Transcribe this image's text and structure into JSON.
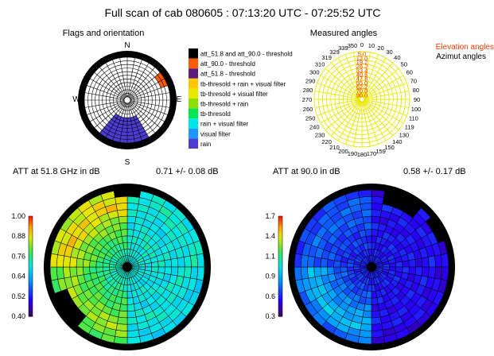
{
  "title": "Full scan of cab 080605 : 07:13:20 UTC - 07:25:52 UTC",
  "flags_panel": {
    "title": "Flags and orientation",
    "compass": {
      "north": "N",
      "east": "E",
      "south": "S",
      "west": "W"
    },
    "legend": [
      {
        "label": "att_51.8 and att_90.0 - threshold",
        "color": "#000000"
      },
      {
        "label": "att_90.0 - threshold",
        "color": "#ff5a00"
      },
      {
        "label": "att_51.8 - threshold",
        "color": "#5a1e78"
      },
      {
        "label": "tb-thresold + rain + visual filter",
        "color": "#ffc800"
      },
      {
        "label": "tb-thresold + visual filter",
        "color": "#e8e800"
      },
      {
        "label": "tb-thresold + rain",
        "color": "#8ce000"
      },
      {
        "label": "tb-thresold",
        "color": "#00e650"
      },
      {
        "label": "rain + visual filter",
        "color": "#00e6e6"
      },
      {
        "label": "visual filter",
        "color": "#1e96ff"
      },
      {
        "label": "rain",
        "color": "#4b3cd2"
      }
    ],
    "colors": {
      "rain": "#4b3cd2",
      "att90_threshold": "#ff5a00",
      "ring": "#000000"
    }
  },
  "angles_panel": {
    "title": "Measured angles",
    "legend_elevation": "Elevation angles",
    "legend_azimuth": "Azimut angles",
    "elevation_labels": [
      "5.0",
      "12.0",
      "19.2",
      "26.2",
      "33.4",
      "40.6",
      "47.8",
      "55.0",
      "62.2",
      "70.0",
      "90.0"
    ],
    "azimuth_labels": [
      "0",
      "10",
      "20",
      "30",
      "40",
      "50",
      "60",
      "70",
      "80",
      "90",
      "100",
      "110",
      "119",
      "130",
      "140",
      "150",
      "159",
      "170",
      "180",
      "190",
      "200",
      "210",
      "220",
      "230",
      "240",
      "250",
      "260",
      "270",
      "280",
      "290",
      "300",
      "310",
      "319",
      "329",
      "339",
      "350"
    ],
    "colors": {
      "grid": "#e8e800",
      "elevation": "#ff3c00",
      "azimuth": "#000000"
    }
  },
  "chart_data": [
    {
      "type": "heatmap",
      "title": "ATT at 51.8 GHz in dB",
      "annotation": "0.71 +/- 0.08 dB",
      "colorbar_ticks": [
        "1.00",
        "0.88",
        "0.76",
        "0.64",
        "0.52",
        "0.40"
      ],
      "vmin": 0.4,
      "vmax": 1.0,
      "projection": "polar",
      "rings": 11,
      "sectors": 36,
      "description_of_values": "azimuth sectors x elevation rings",
      "values_by_sector_group": [
        {
          "azimuth_range": "0-90",
          "values": [
            0.7,
            0.72,
            0.71,
            0.7,
            0.69,
            0.7,
            0.71,
            0.72,
            0.7,
            0.71,
            0.7
          ]
        },
        {
          "azimuth_range": "90-180",
          "values": [
            0.68,
            0.69,
            0.7,
            0.71,
            0.7,
            0.69,
            0.7,
            0.7,
            0.69,
            0.7,
            0.71
          ]
        },
        {
          "azimuth_range": "180-270",
          "values": [
            0.8,
            0.82,
            0.84,
            0.83,
            0.81,
            0.79,
            0.78,
            0.76,
            0.74,
            0.73,
            0.72
          ]
        },
        {
          "azimuth_range": "270-360",
          "values": [
            0.86,
            0.88,
            0.9,
            0.87,
            0.84,
            0.82,
            0.8,
            0.78,
            0.76,
            0.74,
            0.73
          ]
        }
      ]
    },
    {
      "type": "heatmap",
      "title": "ATT at 90.0 in dB",
      "annotation": "0.58 +/- 0.17 dB",
      "colorbar_ticks": [
        "1.7",
        "1.4",
        "1.1",
        "0.9",
        "0.6",
        "0.3"
      ],
      "vmin": 0.3,
      "vmax": 1.7,
      "projection": "polar",
      "rings": 11,
      "sectors": 36,
      "values_by_sector_group": [
        {
          "azimuth_range": "0-90",
          "values": [
            0.5,
            0.52,
            0.55,
            0.53,
            0.52,
            0.54,
            0.55,
            0.56,
            0.55,
            0.56,
            0.57
          ]
        },
        {
          "azimuth_range": "90-180",
          "values": [
            0.48,
            0.5,
            0.52,
            0.54,
            0.53,
            0.52,
            0.54,
            0.55,
            0.56,
            0.57,
            0.58
          ]
        },
        {
          "azimuth_range": "180-270",
          "values": [
            0.7,
            0.8,
            0.9,
            0.85,
            0.8,
            0.75,
            0.7,
            0.66,
            0.62,
            0.6,
            0.58
          ]
        },
        {
          "azimuth_range": "270-360",
          "values": [
            0.62,
            0.66,
            0.7,
            0.68,
            0.66,
            0.64,
            0.62,
            0.61,
            0.6,
            0.59,
            0.58
          ]
        }
      ]
    }
  ]
}
